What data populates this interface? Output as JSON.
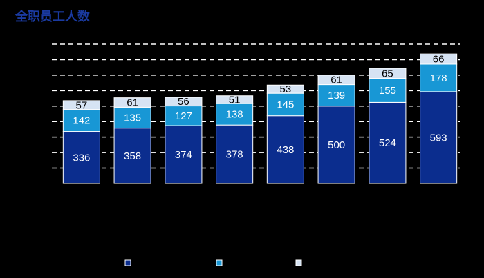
{
  "chart_data": {
    "type": "stacked_bar",
    "title": "全职员工人数",
    "categories": [
      null,
      null,
      null,
      null,
      null,
      null,
      null,
      null
    ],
    "series": [
      {
        "color": "#0b2d8e",
        "label_color": "#ffffff",
        "values": [
          336,
          358,
          374,
          378,
          438,
          500,
          524,
          593
        ]
      },
      {
        "color": "#1897d5",
        "label_color": "#ffffff",
        "values": [
          142,
          135,
          127,
          138,
          145,
          139,
          155,
          178
        ]
      },
      {
        "color": "#d6e3f3",
        "label_color": "#000000",
        "values": [
          57,
          61,
          56,
          51,
          53,
          61,
          65,
          66
        ]
      }
    ],
    "ylim": [
      0,
      900
    ],
    "yticks": [
      100,
      200,
      300,
      400,
      500,
      600,
      700,
      800,
      900
    ],
    "grid": true,
    "legend": "bottom"
  }
}
